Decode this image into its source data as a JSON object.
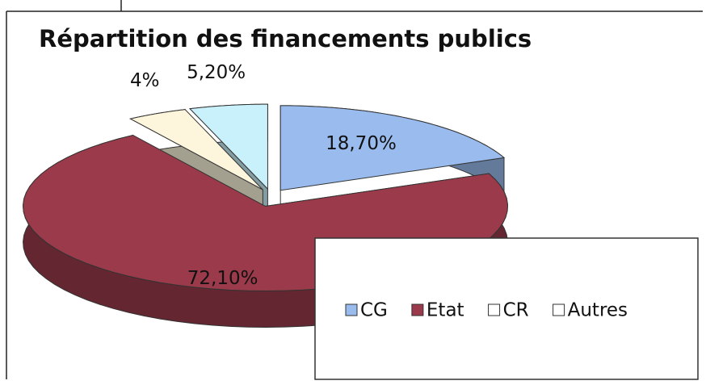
{
  "chart_data": {
    "type": "pie",
    "title": "Répartition des financements publics",
    "categories": [
      "CG",
      "Etat",
      "CR",
      "Autres"
    ],
    "values": [
      18.7,
      72.1,
      4,
      5.2
    ],
    "value_labels": [
      "18,70%",
      "72,10%",
      "4%",
      "5,20%"
    ],
    "colors": [
      "#99bbee",
      "#9a3a4a",
      "#fdf6dc",
      "#c9f1fb"
    ],
    "legend": "bottom-right"
  }
}
